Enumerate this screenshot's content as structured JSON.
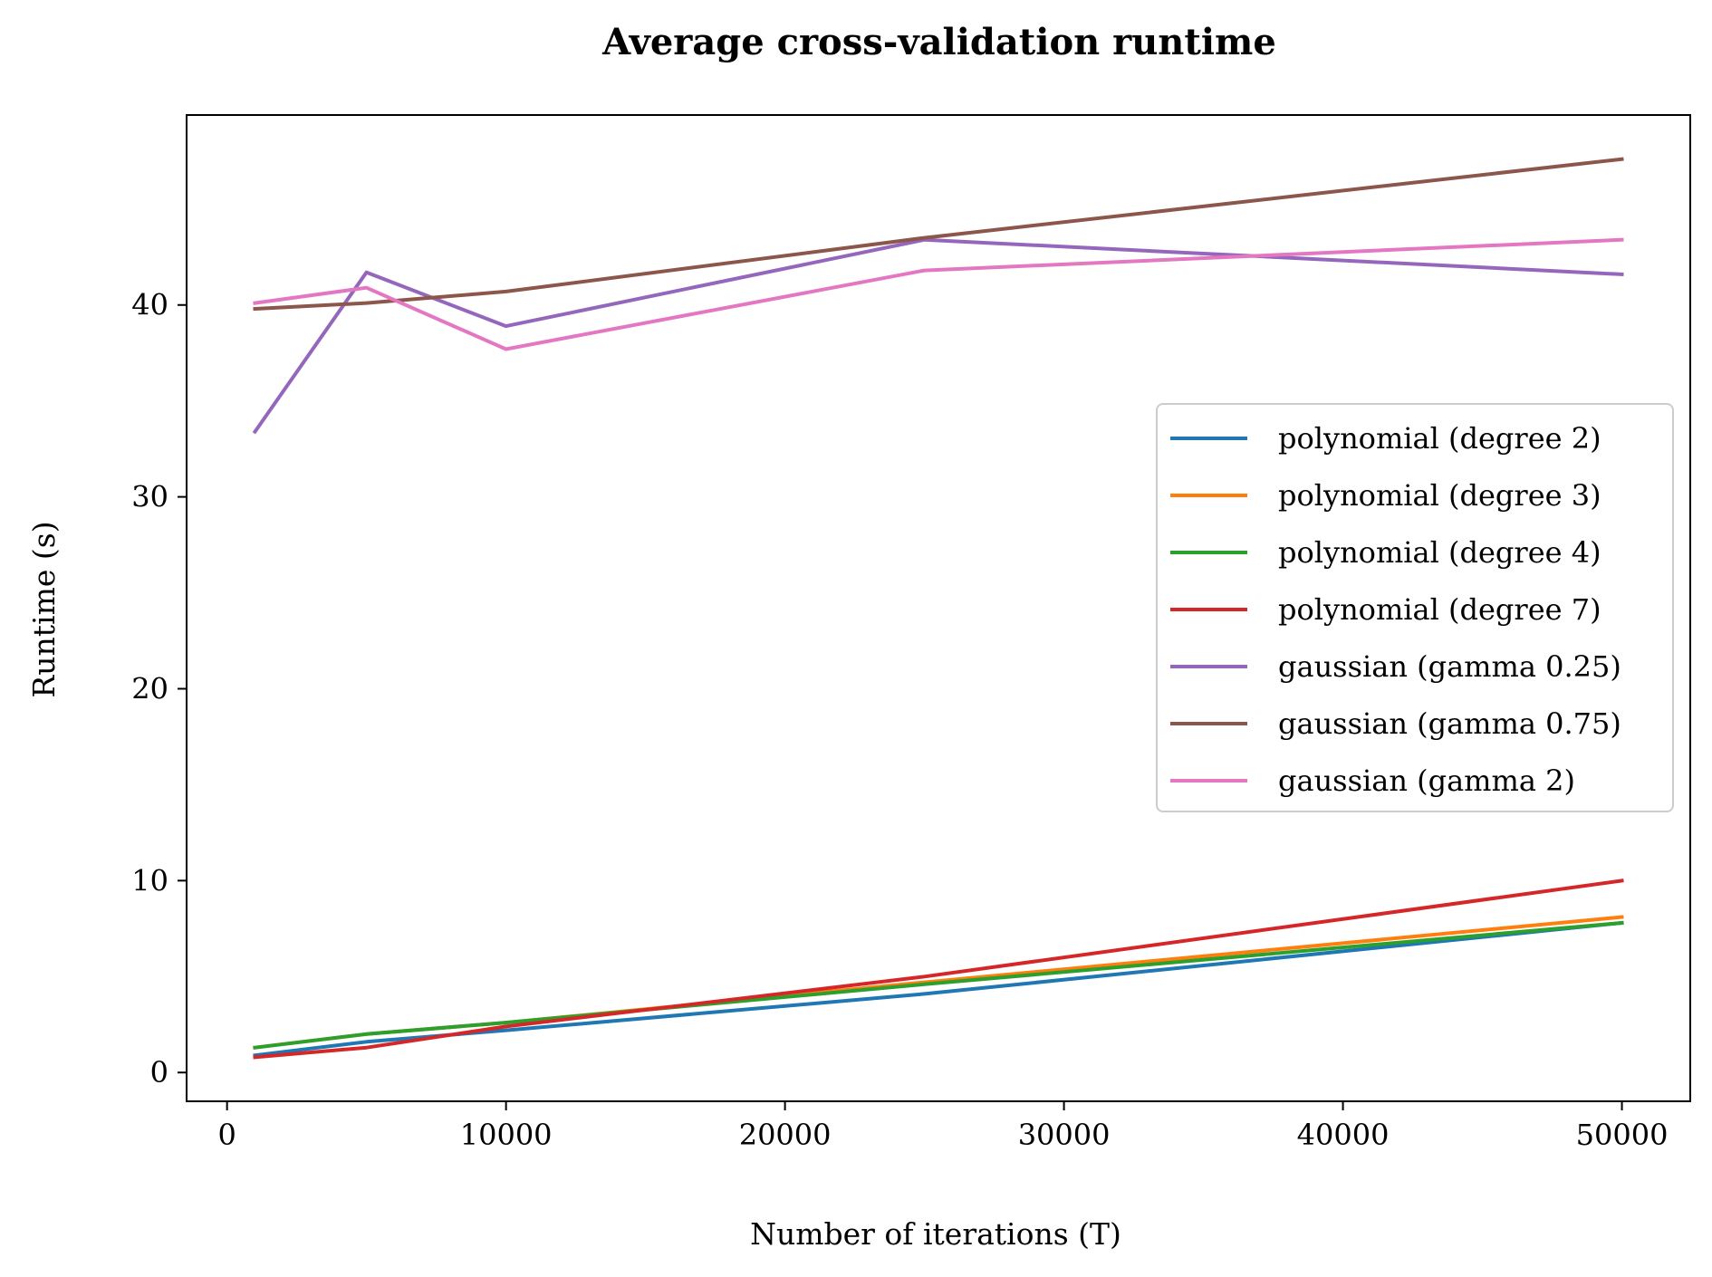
{
  "chart_data": {
    "type": "line",
    "title": "Average cross-validation runtime",
    "xlabel": "Number of iterations (T)",
    "ylabel": "Runtime (s)",
    "xlim": [
      -1450,
      52450
    ],
    "ylim": [
      -1.5,
      49.9
    ],
    "xticks": [
      0,
      10000,
      20000,
      30000,
      40000,
      50000
    ],
    "yticks": [
      0,
      10,
      20,
      30,
      40
    ],
    "grid": false,
    "legend_position": "center-right",
    "x": [
      1000,
      5000,
      10000,
      25000,
      50000
    ],
    "series": [
      {
        "name": "polynomial (degree 2)",
        "color": "#1f77b4",
        "values": [
          0.9,
          1.6,
          2.2,
          4.1,
          7.8
        ]
      },
      {
        "name": "polynomial (degree 3)",
        "color": "#ff7f0e",
        "values": [
          1.3,
          2.0,
          2.6,
          4.7,
          8.1
        ]
      },
      {
        "name": "polynomial (degree 4)",
        "color": "#2ca02c",
        "values": [
          1.3,
          2.0,
          2.6,
          4.6,
          7.8
        ]
      },
      {
        "name": "polynomial (degree 7)",
        "color": "#d62728",
        "values": [
          0.8,
          1.3,
          2.4,
          5.0,
          10.0
        ]
      },
      {
        "name": "gaussian (gamma 0.25)",
        "color": "#9467bd",
        "values": [
          33.4,
          41.7,
          38.9,
          43.4,
          41.6
        ]
      },
      {
        "name": "gaussian (gamma 0.75)",
        "color": "#8c564b",
        "values": [
          39.8,
          40.1,
          40.7,
          43.5,
          47.6
        ]
      },
      {
        "name": "gaussian (gamma 2)",
        "color": "#e377c2",
        "values": [
          40.1,
          40.9,
          37.7,
          41.8,
          43.4
        ]
      }
    ]
  }
}
